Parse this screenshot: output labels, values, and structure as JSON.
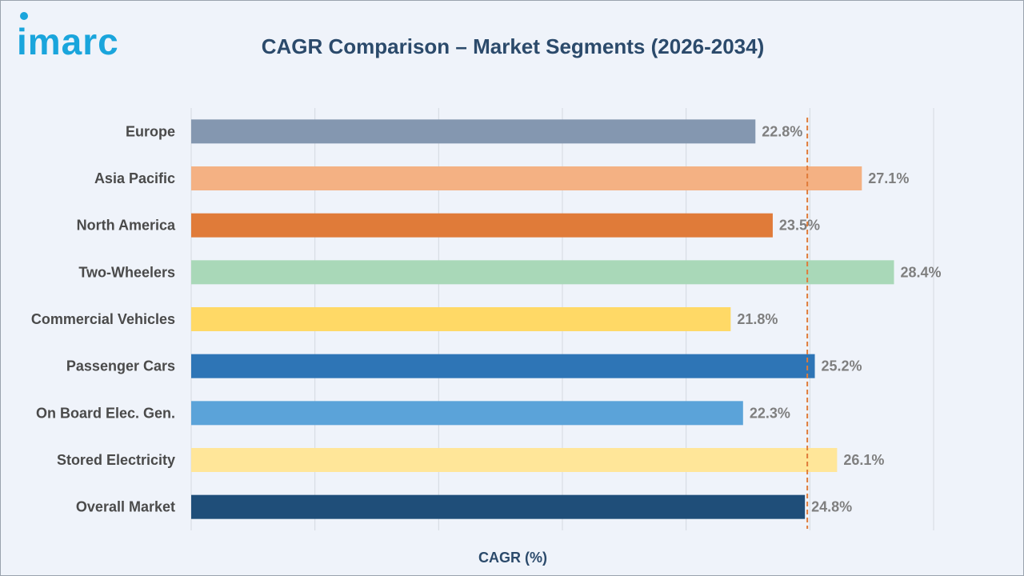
{
  "brand": {
    "logo_text": "imarc",
    "accent": "#1aa5dc"
  },
  "chart_data": {
    "type": "bar",
    "orientation": "horizontal",
    "title": "CAGR Comparison – Market Segments (2026-2034)",
    "xlabel": "CAGR (%)",
    "ylabel": "",
    "xlim": [
      0,
      30
    ],
    "grid": true,
    "categories": [
      "Europe",
      "Asia Pacific",
      "North America",
      "Two-Wheelers",
      "Commercial Vehicles",
      "Passenger Cars",
      "On Board Elec. Gen.",
      "Stored Electricity",
      "Overall Market"
    ],
    "values": [
      22.8,
      27.1,
      23.5,
      28.4,
      21.8,
      25.2,
      22.3,
      26.1,
      24.8
    ],
    "value_labels": [
      "22.8%",
      "27.1%",
      "23.5%",
      "28.4%",
      "21.8%",
      "25.2%",
      "22.3%",
      "26.1%",
      "24.8%"
    ],
    "colors": [
      "#8497b0",
      "#f4b183",
      "#e07b39",
      "#a9d8b8",
      "#ffd966",
      "#2e75b6",
      "#5ba3d9",
      "#ffe699",
      "#1f4e79"
    ],
    "reference_line": {
      "value": 24.8,
      "color": "#e07b39",
      "style": "dashed"
    }
  }
}
